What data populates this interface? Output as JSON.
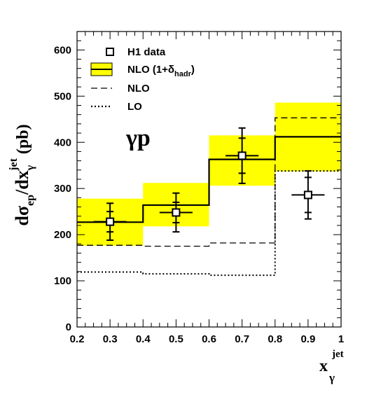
{
  "chart_data": {
    "type": "histogram",
    "xlim": [
      0.2,
      1.0
    ],
    "ylim": [
      0,
      640
    ],
    "x_ticks": [
      "0.2",
      "0.3",
      "0.4",
      "0.5",
      "0.6",
      "0.7",
      "0.8",
      "0.9",
      "1"
    ],
    "y_ticks": [
      "0",
      "100",
      "200",
      "300",
      "400",
      "500",
      "600"
    ],
    "grid": false,
    "legend_position": "top-left",
    "annotation": "γp",
    "xlabel": {
      "main": "x",
      "superscript": "jet",
      "subscript": "γ"
    },
    "ylabel": {
      "main": "dσ",
      "sub1": "ep",
      "mid": "/dx",
      "superscript": "jet",
      "subscript": "γ",
      "unit": "(pb)"
    },
    "bins": [
      [
        0.2,
        0.4
      ],
      [
        0.4,
        0.6
      ],
      [
        0.6,
        0.8
      ],
      [
        0.8,
        1.0
      ]
    ],
    "legend": [
      {
        "key": "h1",
        "label": "H1 data",
        "sub": "",
        "tail": ""
      },
      {
        "key": "nlo_had",
        "label": "NLO (1+δ",
        "sub": "hadr",
        "tail": ")"
      },
      {
        "key": "nlo",
        "label": "NLO",
        "sub": "",
        "tail": ""
      },
      {
        "key": "lo",
        "label": "LO",
        "sub": "",
        "tail": ""
      }
    ],
    "series": {
      "h1_data": {
        "x": [
          0.3,
          0.5,
          0.7,
          0.9
        ],
        "y": [
          228,
          248,
          371,
          286
        ],
        "xerr": [
          0.05,
          0.05,
          0.05,
          0.05
        ],
        "stat_err": [
          22,
          22,
          38,
          38
        ],
        "tot_err": [
          40,
          42,
          60,
          52
        ]
      },
      "nlo_had": {
        "central": [
          227,
          264,
          363,
          412
        ],
        "band_low": [
          176,
          218,
          306,
          337
        ],
        "band_high": [
          278,
          312,
          415,
          486
        ],
        "band_color": "#ffff00"
      },
      "nlo": {
        "values": [
          177,
          175,
          182,
          453
        ]
      },
      "lo": {
        "values": [
          119,
          115,
          112,
          338
        ]
      }
    }
  }
}
